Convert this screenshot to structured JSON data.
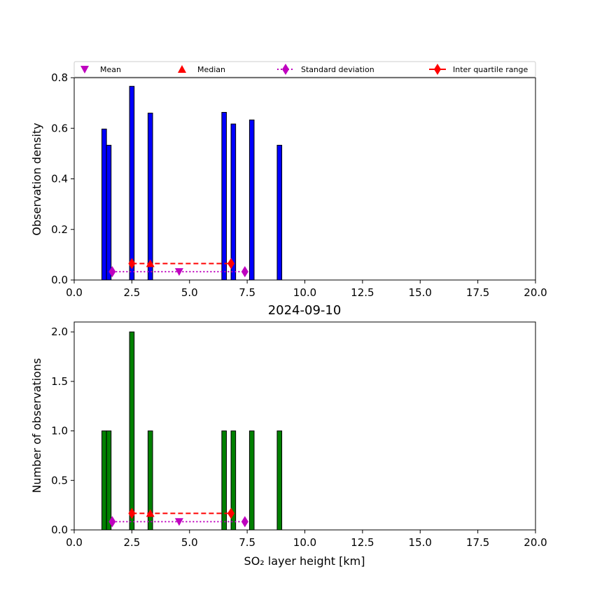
{
  "chart_data": [
    {
      "type": "bar",
      "title": "",
      "xlabel": "",
      "ylabel": "Observation density",
      "xlim": [
        0,
        20
      ],
      "ylim": [
        0,
        0.8
      ],
      "xticks": [
        "0.0",
        "2.5",
        "5.0",
        "7.5",
        "10.0",
        "12.5",
        "15.0",
        "17.5",
        "20.0"
      ],
      "yticks": [
        "0.0",
        "0.2",
        "0.4",
        "0.6",
        "0.8"
      ],
      "bar_color": "#0000ff",
      "bars": [
        {
          "x": 1.3,
          "value": 0.597
        },
        {
          "x": 1.5,
          "value": 0.533
        },
        {
          "x": 2.5,
          "value": 0.766
        },
        {
          "x": 3.3,
          "value": 0.66
        },
        {
          "x": 6.5,
          "value": 0.663
        },
        {
          "x": 6.9,
          "value": 0.617
        },
        {
          "x": 7.7,
          "value": 0.633
        },
        {
          "x": 8.9,
          "value": 0.533
        }
      ],
      "stats": {
        "mean": {
          "x": 4.55,
          "y": 0.033
        },
        "median": {
          "x": 3.3,
          "y": 0.065
        },
        "std_range": {
          "x": [
            1.65,
            7.4
          ],
          "y": 0.033
        },
        "iqr": {
          "x": [
            2.5,
            6.8
          ],
          "y": 0.065
        }
      }
    },
    {
      "type": "bar",
      "title": "2024-09-10",
      "xlabel": "SO₂ layer height [km]",
      "ylabel": "Number of observations",
      "xlim": [
        0,
        20
      ],
      "ylim": [
        0,
        2.1
      ],
      "xticks": [
        "0.0",
        "2.5",
        "5.0",
        "7.5",
        "10.0",
        "12.5",
        "15.0",
        "17.5",
        "20.0"
      ],
      "yticks": [
        "0.0",
        "0.5",
        "1.0",
        "1.5",
        "2.0"
      ],
      "bar_color": "#008000",
      "bars": [
        {
          "x": 1.3,
          "value": 1
        },
        {
          "x": 1.5,
          "value": 1
        },
        {
          "x": 2.5,
          "value": 2
        },
        {
          "x": 3.3,
          "value": 1
        },
        {
          "x": 6.5,
          "value": 1
        },
        {
          "x": 6.9,
          "value": 1
        },
        {
          "x": 7.7,
          "value": 1
        },
        {
          "x": 8.9,
          "value": 1
        }
      ],
      "stats": {
        "mean": {
          "x": 4.55,
          "y": 0.083
        },
        "median": {
          "x": 3.3,
          "y": 0.167
        },
        "std_range": {
          "x": [
            1.65,
            7.4
          ],
          "y": 0.083
        },
        "iqr": {
          "x": [
            2.5,
            6.8
          ],
          "y": 0.167
        }
      }
    }
  ],
  "legend": {
    "placement": "top",
    "entries": [
      {
        "label": "Mean",
        "color": "#bf00bf",
        "marker": "triangle-down"
      },
      {
        "label": "Median",
        "color": "#ff0000",
        "marker": "triangle-up"
      },
      {
        "label": "Standard deviation",
        "color": "#bf00bf",
        "marker": "diamond-dotted"
      },
      {
        "label": "Inter quartile range",
        "color": "#ff0000",
        "marker": "diamond-dashed"
      }
    ]
  }
}
